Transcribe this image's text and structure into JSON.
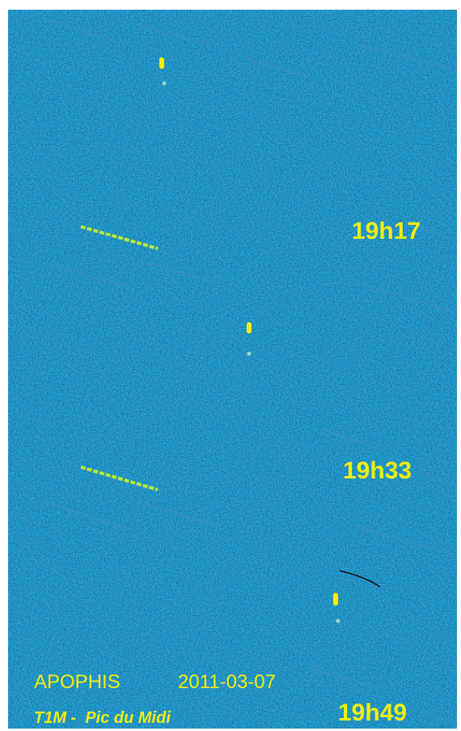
{
  "panels": [
    {
      "time": "19h17"
    },
    {
      "time": "19h33"
    },
    {
      "time": "19h49"
    }
  ],
  "caption": {
    "object": "APOPHIS",
    "date": "2011-03-07",
    "observatory": "T1M -  Pic du Midi"
  }
}
